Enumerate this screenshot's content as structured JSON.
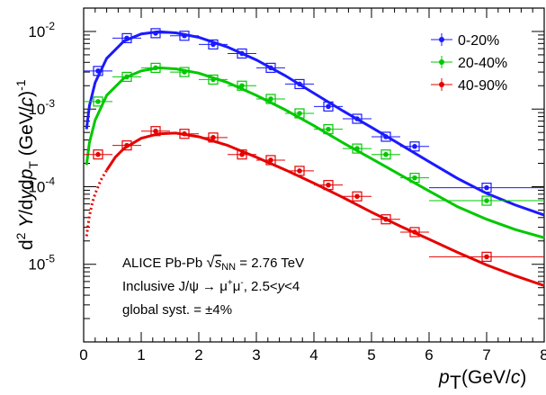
{
  "chart_data": {
    "type": "scatter",
    "xlabel": "p_T (GeV/c)",
    "ylabel": "d^2Y/dydp_T (GeV/c)^-1",
    "xlim": [
      0,
      8
    ],
    "ylim": [
      1e-06,
      0.02
    ],
    "y_scale": "log",
    "x_ticks": [
      0,
      1,
      2,
      3,
      4,
      5,
      6,
      7,
      8
    ],
    "y_ticks": [
      {
        "value": 1e-05,
        "label": "10^-5"
      },
      {
        "value": 0.0001,
        "label": "10^-4"
      },
      {
        "value": 0.001,
        "label": "10^-3"
      },
      {
        "value": 0.01,
        "label": "10^-2"
      }
    ],
    "legend_position": "top-right",
    "annotations": [
      "ALICE Pb-Pb √s_NN = 2.76 TeV",
      "Inclusive J/ψ → μ⁺μ⁻, 2.5<y<4",
      "global syst. = ±4%"
    ],
    "series": [
      {
        "name": "0-20%",
        "color": "#1a1aff",
        "x": [
          0.25,
          0.75,
          1.25,
          1.75,
          2.25,
          2.75,
          3.25,
          3.75,
          4.25,
          4.75,
          5.25,
          5.75,
          7.0
        ],
        "xerr": [
          0.25,
          0.25,
          0.25,
          0.25,
          0.25,
          0.25,
          0.25,
          0.25,
          0.25,
          0.25,
          0.25,
          0.25,
          1.0
        ],
        "y": [
          0.0031,
          0.0082,
          0.0095,
          0.0088,
          0.0068,
          0.0052,
          0.0034,
          0.0021,
          0.00108,
          0.00075,
          0.00044,
          0.00033,
          9.7e-05
        ],
        "fit": {
          "x": [
            0.05,
            0.1,
            0.2,
            0.4,
            0.7,
            1.0,
            1.3,
            1.6,
            2.0,
            2.5,
            3.0,
            3.5,
            4.0,
            4.5,
            5.0,
            5.5,
            6.0,
            6.5,
            7.0,
            7.5,
            8.0
          ],
          "y": [
            0.00055,
            0.0011,
            0.0022,
            0.0045,
            0.0075,
            0.0093,
            0.0099,
            0.0096,
            0.0084,
            0.0063,
            0.0043,
            0.0027,
            0.0016,
            0.00095,
            0.00058,
            0.00035,
            0.00021,
            0.000127,
            8.2e-05,
            5.8e-05,
            4.3e-05
          ]
        }
      },
      {
        "name": "20-40%",
        "color": "#00c800",
        "x": [
          0.25,
          0.75,
          1.25,
          1.75,
          2.25,
          2.75,
          3.25,
          3.75,
          4.25,
          4.75,
          5.25,
          5.75,
          7.0
        ],
        "xerr": [
          0.25,
          0.25,
          0.25,
          0.25,
          0.25,
          0.25,
          0.25,
          0.25,
          0.25,
          0.25,
          0.25,
          0.25,
          1.0
        ],
        "y": [
          0.00125,
          0.0026,
          0.0034,
          0.003,
          0.0024,
          0.002,
          0.00135,
          0.00088,
          0.00055,
          0.00031,
          0.00026,
          0.00013,
          6.6e-05
        ],
        "fit": {
          "x": [
            0.05,
            0.1,
            0.2,
            0.4,
            0.7,
            1.0,
            1.3,
            1.6,
            2.0,
            2.5,
            3.0,
            3.5,
            4.0,
            4.5,
            5.0,
            5.5,
            6.0,
            6.5,
            7.0,
            7.5,
            8.0
          ],
          "y": [
            0.00019,
            0.00037,
            0.00072,
            0.0015,
            0.0025,
            0.0031,
            0.0034,
            0.0033,
            0.0029,
            0.0022,
            0.0015,
            0.00098,
            0.00061,
            0.00037,
            0.00023,
            0.000142,
            8.8e-05,
            5.5e-05,
            3.8e-05,
            2.8e-05,
            2.2e-05
          ]
        }
      },
      {
        "name": "40-90%",
        "color": "#e60000",
        "x": [
          0.25,
          0.75,
          1.25,
          1.75,
          2.25,
          2.75,
          3.25,
          3.75,
          4.25,
          4.75,
          5.25,
          5.75,
          7.0
        ],
        "xerr": [
          0.25,
          0.25,
          0.25,
          0.25,
          0.25,
          0.25,
          0.25,
          0.25,
          0.25,
          0.25,
          0.25,
          0.25,
          1.0
        ],
        "y": [
          0.00026,
          0.00034,
          0.00052,
          0.00048,
          0.00043,
          0.00026,
          0.00022,
          0.00016,
          0.000105,
          7.5e-05,
          3.8e-05,
          2.6e-05,
          1.25e-05
        ],
        "fit": {
          "x": [
            0.05,
            0.1,
            0.15,
            0.2,
            0.3,
            0.4,
            0.55,
            0.7,
            1.0,
            1.3,
            1.6,
            2.0,
            2.5,
            3.0,
            3.5,
            4.0,
            4.5,
            5.0,
            5.5,
            6.0,
            6.5,
            7.0,
            7.5,
            8.0
          ],
          "y": [
            2.3e-05,
            4.2e-05,
            6.2e-05,
            8.1e-05,
            0.000122,
            0.000163,
            0.00024,
            0.00031,
            0.00042,
            0.00048,
            0.00049,
            0.00044,
            0.00034,
            0.00024,
            0.000165,
            0.000111,
            7.3e-05,
            4.7e-05,
            3.1e-05,
            2.1e-05,
            1.42e-05,
            9.8e-06,
            7.1e-06,
            5.3e-06
          ]
        },
        "fit_dotted_below_x": 0.5
      }
    ]
  }
}
